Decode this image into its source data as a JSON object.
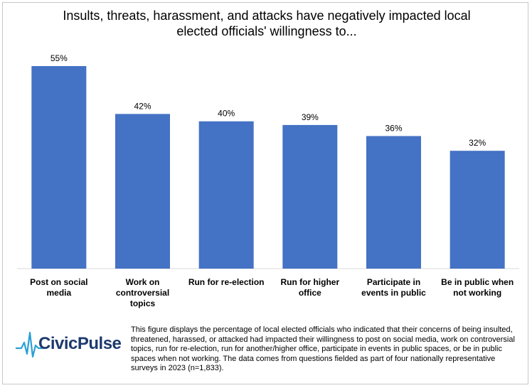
{
  "chart_data": {
    "type": "bar",
    "title": "Insults, threats, harassment, and attacks have negatively impacted local elected officials' willingness to...",
    "categories": [
      [
        "Post on social",
        "media"
      ],
      [
        "Work on",
        "controversial",
        "topics"
      ],
      [
        "Run for re-election"
      ],
      [
        "Run for higher",
        "office"
      ],
      [
        "Participate in",
        "events in public"
      ],
      [
        "Be in public when",
        "not working"
      ]
    ],
    "values": [
      55,
      42,
      40,
      39,
      36,
      32
    ],
    "labels": [
      "55%",
      "42%",
      "40%",
      "39%",
      "36%",
      "32%"
    ],
    "ylim": [
      0,
      60
    ],
    "grid": false,
    "bar_color": "#4472c4",
    "xlabel": "",
    "ylabel": ""
  },
  "logo": {
    "text": "CivicPulse"
  },
  "footnote": "This figure displays the percentage of local elected officials who indicated that their concerns of being insulted, threatened, harassed, or attacked had impacted their willingness to post on social media, work on controversial topics, run for re-election, run for another/higher office, participate in events in public spaces, or be in public spaces when not working. The data comes from questions fielded as part of four nationally representative surveys in 2023 (n=1,833)."
}
